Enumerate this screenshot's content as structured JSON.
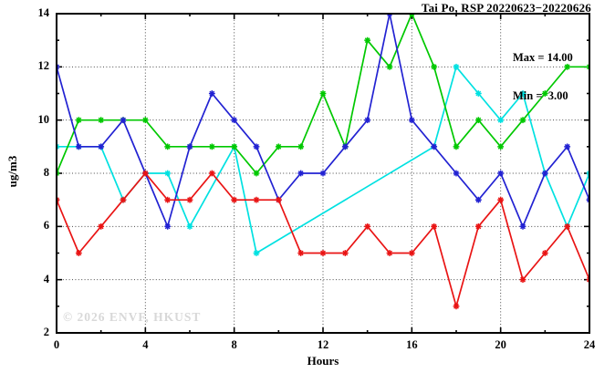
{
  "header": {
    "title": "Tai Po, RSP 20220623−20220626"
  },
  "annotation": {
    "max_label": "Max = 14.00",
    "min_label": "Min =  3.00"
  },
  "watermark": {
    "text": "© 2026 ENVF, HKUST"
  },
  "colors": {
    "axis": "#000000",
    "grid": "#2a2a2a",
    "watermark": "#d8d8d8",
    "series_blue": "#2222d2",
    "series_green": "#00c800",
    "series_red": "#e91414",
    "series_cyan": "#00e1e1"
  },
  "chart_data": {
    "type": "line",
    "title": "Tai Po, RSP 20220623−20220626",
    "xlabel": "Hours",
    "ylabel": "ug/m3",
    "xlim": [
      0,
      24
    ],
    "ylim": [
      2,
      14
    ],
    "xticks": [
      0,
      4,
      8,
      12,
      16,
      20,
      24
    ],
    "yticks": [
      2,
      4,
      6,
      8,
      10,
      12,
      14
    ],
    "x_minor_step": 2,
    "y_minor_step": 1,
    "grid": true,
    "legend_position": "none",
    "marker": "star",
    "x": [
      0,
      1,
      2,
      3,
      4,
      5,
      6,
      7,
      8,
      9,
      10,
      11,
      12,
      13,
      14,
      15,
      16,
      17,
      18,
      19,
      20,
      21,
      22,
      23,
      24
    ],
    "series": [
      {
        "name": "cyan",
        "color_key": "series_cyan",
        "values": [
          9,
          9,
          9,
          7,
          8,
          8,
          6,
          null,
          9,
          5,
          null,
          null,
          null,
          null,
          null,
          null,
          null,
          9,
          12,
          11,
          10,
          11,
          8,
          6,
          8
        ]
      },
      {
        "name": "green",
        "color_key": "series_green",
        "values": [
          8,
          10,
          10,
          10,
          10,
          9,
          9,
          9,
          9,
          8,
          9,
          9,
          11,
          9,
          13,
          12,
          14,
          12,
          9,
          10,
          9,
          10,
          11,
          12,
          12
        ]
      },
      {
        "name": "blue",
        "color_key": "series_blue",
        "values": [
          12,
          9,
          9,
          10,
          8,
          6,
          9,
          11,
          10,
          9,
          7,
          8,
          8,
          9,
          10,
          14,
          10,
          9,
          8,
          7,
          8,
          6,
          8,
          9,
          7
        ]
      },
      {
        "name": "red",
        "color_key": "series_red",
        "values": [
          7,
          5,
          6,
          7,
          8,
          7,
          7,
          8,
          7,
          7,
          7,
          5,
          5,
          5,
          6,
          5,
          5,
          6,
          3,
          6,
          7,
          4,
          5,
          6,
          4
        ]
      }
    ],
    "annotations": [
      "Max = 14.00",
      "Min =  3.00"
    ]
  }
}
